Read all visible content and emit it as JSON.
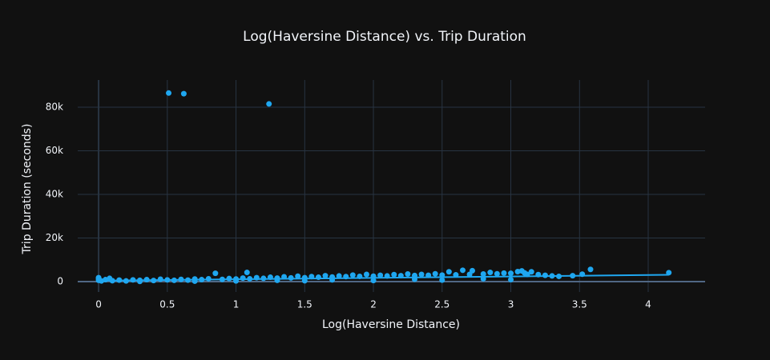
{
  "chart_data": {
    "type": "scatter",
    "title": "Log(Haversine Distance) vs. Trip Duration",
    "x_label": "Log(Haversine Distance)",
    "y_label": "Trip Duration (seconds)",
    "xlim": [
      -0.152,
      4.414
    ],
    "ylim": [
      -4770,
      92480
    ],
    "xticks": [
      0,
      0.5,
      1,
      1.5,
      2,
      2.5,
      3,
      3.5,
      4
    ],
    "yticks": [
      0,
      {
        "value": 20000,
        "label": "20k"
      },
      {
        "value": 40000,
        "label": "40k"
      },
      {
        "value": 60000,
        "label": "60k"
      },
      {
        "value": 80000,
        "label": "80k"
      }
    ],
    "grid": true,
    "background": "#111111",
    "grid_color": "#283442",
    "series": [
      {
        "color": "#1fa7f0",
        "mode": "markers",
        "x": [
          0,
          0,
          0,
          0.02,
          0.05,
          0.08,
          0.1,
          0.15,
          0.2,
          0.25,
          0.3,
          0.35,
          0.4,
          0.45,
          0.5,
          0.51,
          0.55,
          0.6,
          0.62,
          0.65,
          0.7,
          0.75,
          0.8,
          0.85,
          0.9,
          0.95,
          1.0,
          1.05,
          1.08,
          1.1,
          1.15,
          1.2,
          1.24,
          1.25,
          1.3,
          1.35,
          1.4,
          1.45,
          1.5,
          1.55,
          1.6,
          1.65,
          1.7,
          1.75,
          1.8,
          1.85,
          1.9,
          1.95,
          2.0,
          2.05,
          2.1,
          2.15,
          2.2,
          2.25,
          2.3,
          2.35,
          2.4,
          2.45,
          2.5,
          2.55,
          2.6,
          2.65,
          2.7,
          2.72,
          2.8,
          2.85,
          2.9,
          2.95,
          3.0,
          3.05,
          3.08,
          3.1,
          3.12,
          3.15,
          3.2,
          3.25,
          3.3,
          3.35,
          3.45,
          3.52,
          3.58,
          4.15,
          0.3,
          0.7,
          1.0,
          1.5,
          2.0,
          2.5,
          3.0,
          1.3,
          1.7,
          2.3,
          2.8
        ],
        "values": [
          1200,
          600,
          1800,
          300,
          900,
          1500,
          400,
          700,
          300,
          800,
          600,
          900,
          500,
          1100,
          800,
          86500,
          600,
          1000,
          86200,
          700,
          1200,
          900,
          1300,
          3800,
          1000,
          1400,
          1200,
          1600,
          4200,
          1300,
          1800,
          1500,
          81500,
          2000,
          1600,
          2200,
          1700,
          2500,
          1800,
          2300,
          2000,
          2700,
          2100,
          2600,
          2300,
          3000,
          2400,
          3300,
          2500,
          2900,
          2600,
          3200,
          2700,
          3500,
          2800,
          3300,
          2900,
          3600,
          3000,
          4500,
          3100,
          5200,
          3300,
          5000,
          3500,
          4200,
          3600,
          3900,
          3800,
          4600,
          4900,
          4000,
          3300,
          4500,
          3200,
          2900,
          2600,
          2400,
          2700,
          3400,
          5600,
          4100,
          100,
          200,
          300,
          400,
          500,
          700,
          900,
          600,
          800,
          1100,
          1300
        ]
      },
      {
        "color": "#1fa7f0",
        "mode": "lines",
        "x": [
          0,
          4.15
        ],
        "values": [
          400,
          3100
        ]
      }
    ]
  }
}
